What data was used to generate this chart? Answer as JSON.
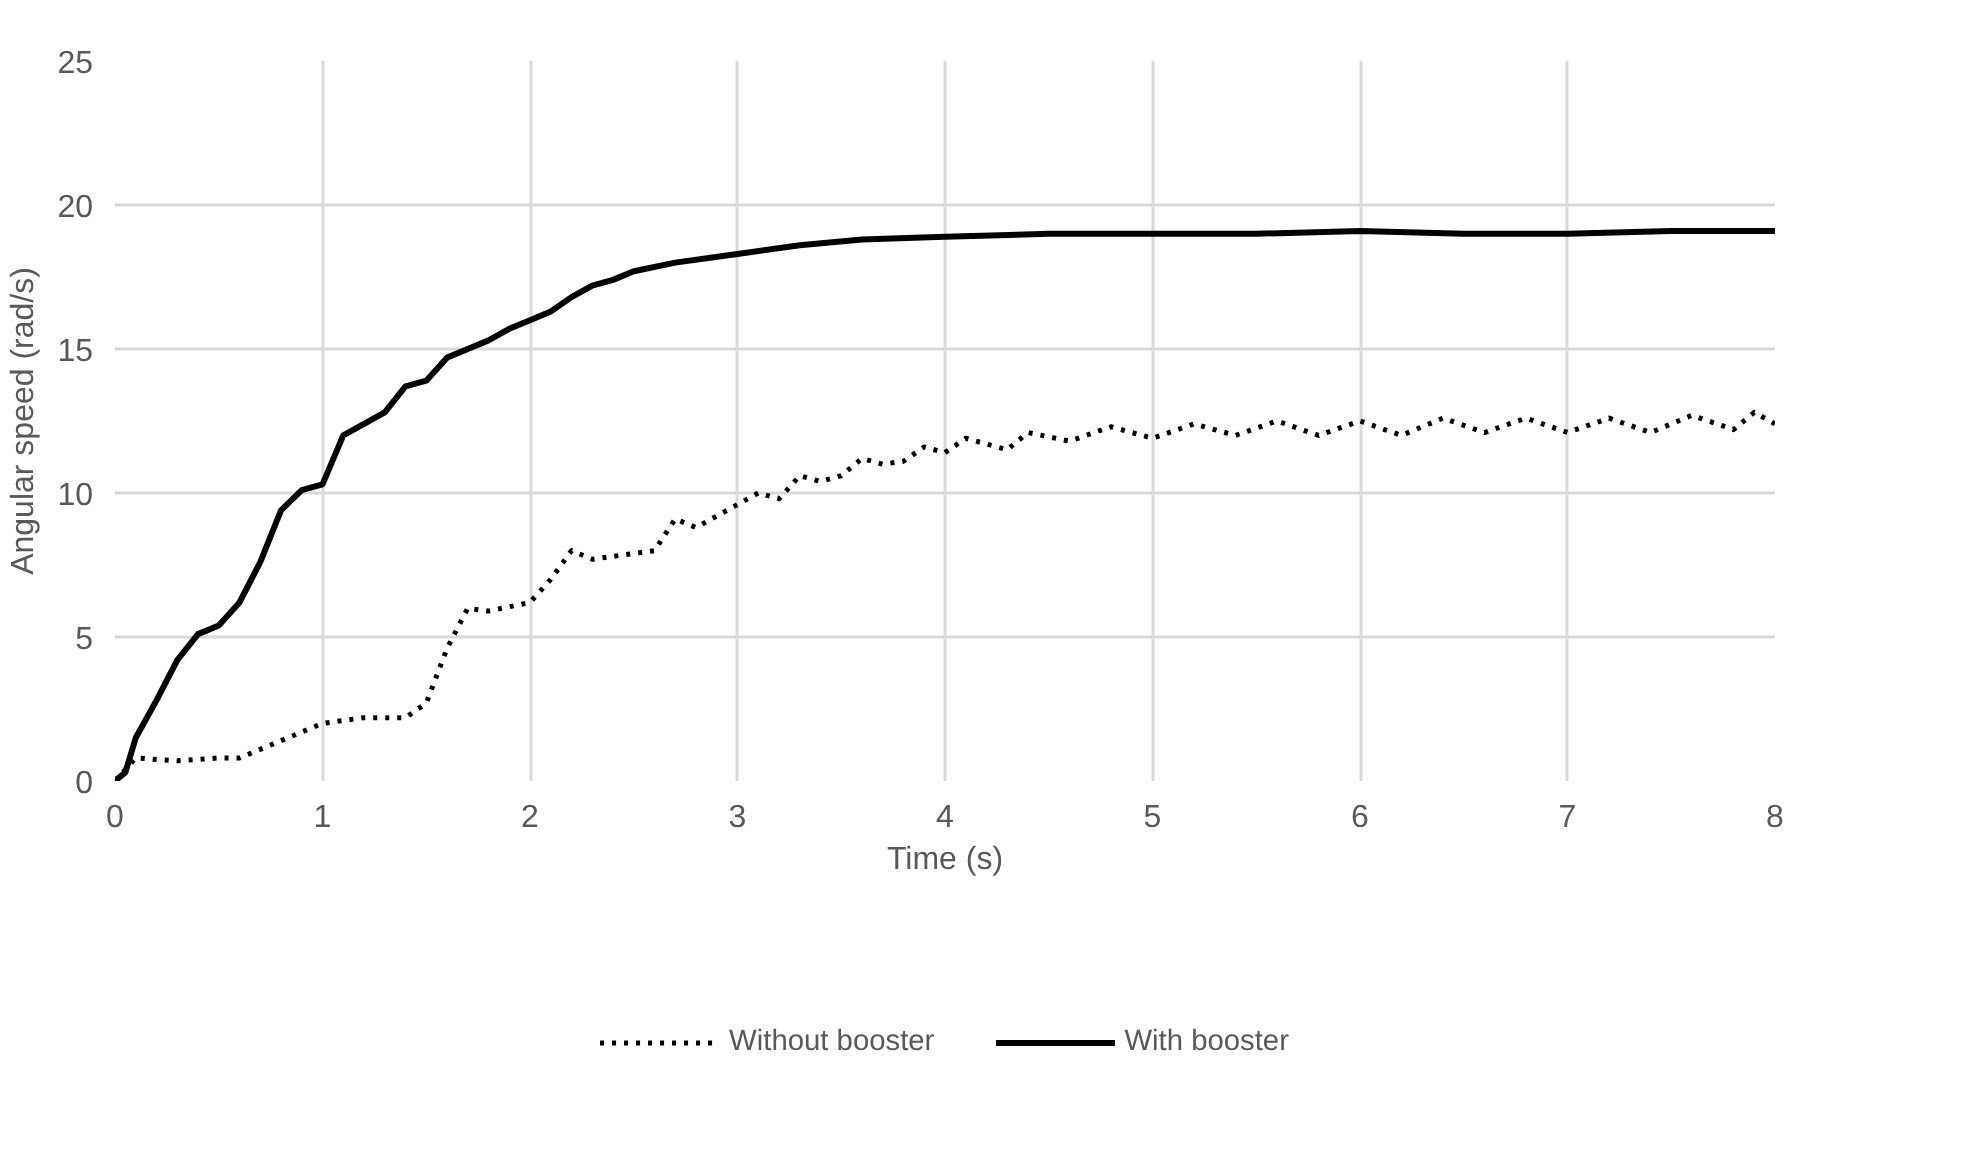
{
  "chart_data": {
    "type": "line",
    "xlabel": "Time (s)",
    "ylabel": "Angular speed (rad/s)",
    "xlim": [
      0,
      8
    ],
    "ylim": [
      0,
      25
    ],
    "xticks": [
      0,
      1,
      2,
      3,
      4,
      5,
      6,
      7,
      8
    ],
    "yticks": [
      0,
      5,
      10,
      15,
      20,
      25
    ],
    "grid": true,
    "legend": "bottom",
    "marker": "none",
    "series": [
      {
        "name": "Without booster",
        "color": "#000000",
        "line_style": "dotted",
        "x": [
          0,
          0.1,
          0.3,
          0.5,
          0.6,
          0.8,
          1.0,
          1.2,
          1.4,
          1.5,
          1.6,
          1.7,
          1.8,
          2.0,
          2.1,
          2.2,
          2.3,
          2.4,
          2.6,
          2.7,
          2.8,
          3.0,
          3.1,
          3.2,
          3.3,
          3.4,
          3.5,
          3.6,
          3.7,
          3.8,
          3.9,
          4.0,
          4.1,
          4.3,
          4.4,
          4.6,
          4.8,
          5.0,
          5.2,
          5.4,
          5.6,
          5.8,
          6.0,
          6.2,
          6.4,
          6.6,
          6.8,
          7.0,
          7.2,
          7.4,
          7.6,
          7.8,
          7.9,
          8.0
        ],
        "values": [
          0,
          0.8,
          0.7,
          0.8,
          0.8,
          1.4,
          2.0,
          2.2,
          2.2,
          2.7,
          4.6,
          6.0,
          5.9,
          6.2,
          7.0,
          8.0,
          7.7,
          7.8,
          8.0,
          9.1,
          8.8,
          9.6,
          10.0,
          9.8,
          10.6,
          10.4,
          10.6,
          11.2,
          11.0,
          11.1,
          11.6,
          11.4,
          11.9,
          11.5,
          12.1,
          11.8,
          12.3,
          11.9,
          12.4,
          12.0,
          12.5,
          12.0,
          12.5,
          12.0,
          12.6,
          12.1,
          12.6,
          12.1,
          12.6,
          12.1,
          12.7,
          12.2,
          12.8,
          12.4
        ]
      },
      {
        "name": "With booster",
        "color": "#000000",
        "line_style": "solid",
        "x": [
          0,
          0.05,
          0.1,
          0.2,
          0.3,
          0.4,
          0.5,
          0.6,
          0.7,
          0.8,
          0.9,
          1.0,
          1.1,
          1.2,
          1.3,
          1.4,
          1.5,
          1.6,
          1.7,
          1.8,
          1.9,
          2.0,
          2.1,
          2.2,
          2.3,
          2.4,
          2.5,
          2.7,
          3.0,
          3.3,
          3.6,
          4.0,
          4.5,
          5.0,
          5.5,
          6.0,
          6.5,
          7.0,
          7.5,
          8.0
        ],
        "values": [
          0,
          0.3,
          1.5,
          2.8,
          4.2,
          5.1,
          5.4,
          6.2,
          7.6,
          9.4,
          10.1,
          10.3,
          12.0,
          12.4,
          12.8,
          13.7,
          13.9,
          14.7,
          15.0,
          15.3,
          15.7,
          16.0,
          16.3,
          16.8,
          17.2,
          17.4,
          17.7,
          18.0,
          18.3,
          18.6,
          18.8,
          18.9,
          19.0,
          19.0,
          19.0,
          19.1,
          19.0,
          19.0,
          19.1,
          19.1
        ]
      }
    ]
  }
}
